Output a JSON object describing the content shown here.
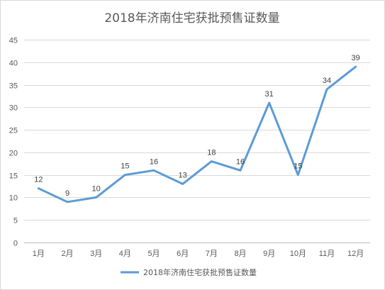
{
  "chart_data": {
    "type": "line",
    "title": "2018年济南住宅获批预售证数量",
    "xlabel": "",
    "ylabel": "",
    "categories": [
      "1月",
      "2月",
      "3月",
      "4月",
      "5月",
      "6月",
      "7月",
      "8月",
      "9月",
      "10月",
      "11月",
      "12月"
    ],
    "series": [
      {
        "name": "2018年济南住宅获批预售证数量",
        "values": [
          12,
          9,
          10,
          15,
          16,
          13,
          18,
          16,
          31,
          15,
          34,
          39
        ],
        "color": "#5b9bd5"
      }
    ],
    "ylim": [
      0,
      45
    ],
    "yticks": [
      0,
      5,
      10,
      15,
      20,
      25,
      30,
      35,
      40,
      45
    ],
    "grid": true,
    "data_labels": true,
    "legend": "bottom"
  }
}
